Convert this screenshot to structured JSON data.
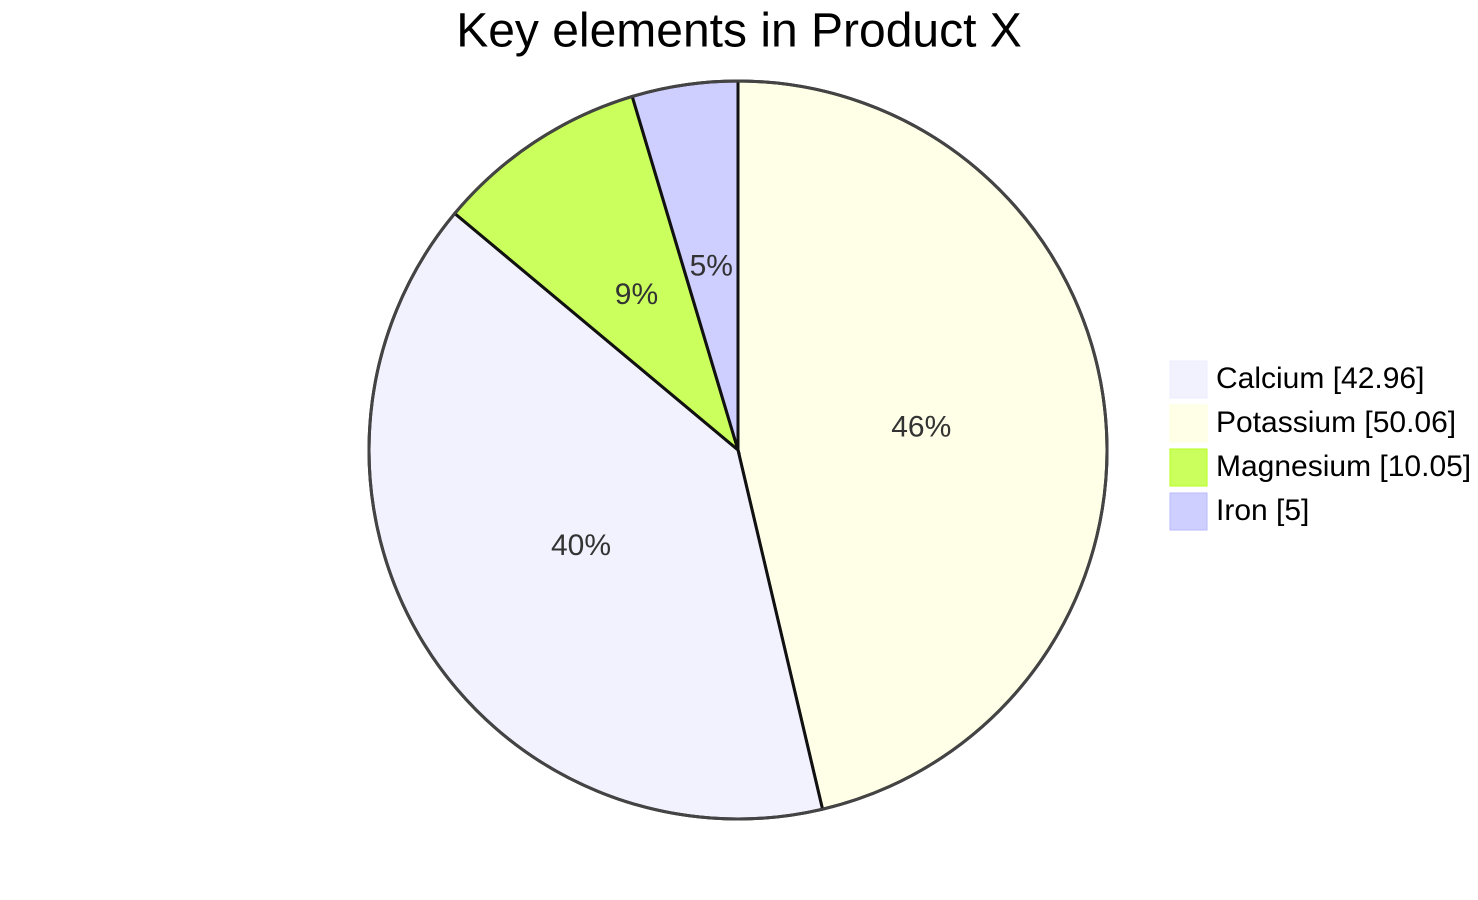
{
  "chart_data": {
    "type": "pie",
    "title": "Key elements in Product X",
    "categories": [
      "Calcium",
      "Potassium",
      "Magnesium",
      "Iron"
    ],
    "values": [
      42.96,
      50.06,
      10.05,
      5
    ],
    "value_labels": [
      "40%",
      "46%",
      "9%",
      "5%"
    ],
    "legend_labels": [
      "Calcium [42.96]",
      "Potassium [50.06]",
      "Magnesium [10.05]",
      "Iron [5]"
    ],
    "colors": [
      "#ececff",
      "#ffffde",
      "#b4ff1a",
      "#b9b9ff"
    ],
    "legend": "right"
  }
}
